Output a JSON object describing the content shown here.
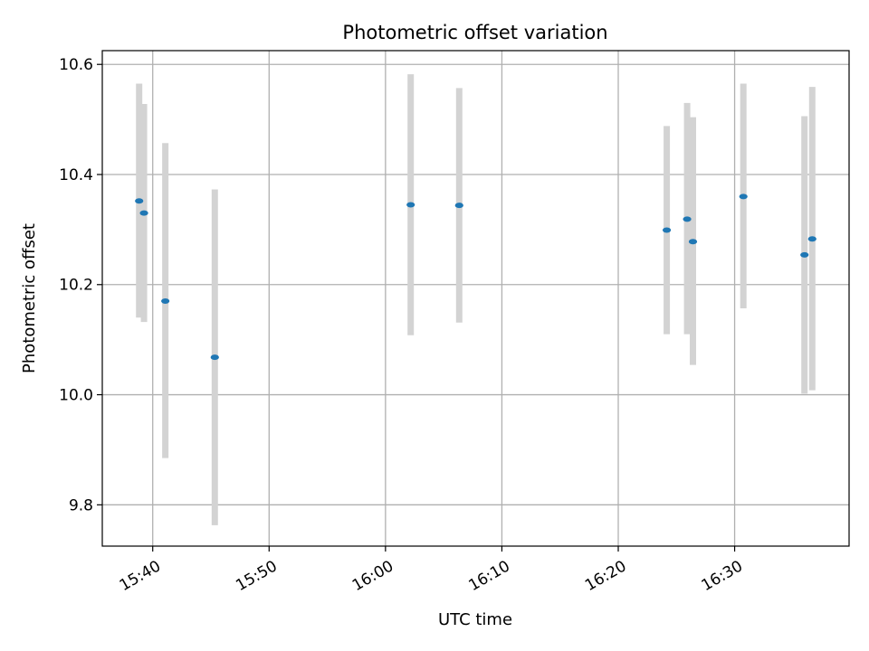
{
  "chart_data": {
    "type": "scatter",
    "title": "Photometric offset variation",
    "xlabel": "UTC time",
    "ylabel": "Photometric offset",
    "x_ticks": [
      "15:40",
      "15:50",
      "16:00",
      "16:10",
      "16:20",
      "16:30"
    ],
    "y_ticks": [
      "9.8",
      "10.0",
      "10.2",
      "10.4",
      "10.6"
    ],
    "xlim": [
      "15:35:40",
      "16:39:50"
    ],
    "ylim": [
      9.725,
      10.625
    ],
    "grid": true,
    "marker_color": "#1f77b4",
    "errorbar_color": "#d3d3d3",
    "series": [
      {
        "points": [
          {
            "x": "15:38:50",
            "y": 10.352,
            "y_low": 10.14,
            "y_high": 10.565
          },
          {
            "x": "15:39:15",
            "y": 10.33,
            "y_low": 10.132,
            "y_high": 10.528
          },
          {
            "x": "15:41:05",
            "y": 10.17,
            "y_low": 9.885,
            "y_high": 10.457
          },
          {
            "x": "15:45:20",
            "y": 10.068,
            "y_low": 9.763,
            "y_high": 10.373
          },
          {
            "x": "16:02:10",
            "y": 10.345,
            "y_low": 10.108,
            "y_high": 10.582
          },
          {
            "x": "16:06:20",
            "y": 10.344,
            "y_low": 10.131,
            "y_high": 10.557
          },
          {
            "x": "16:24:10",
            "y": 10.299,
            "y_low": 10.11,
            "y_high": 10.488
          },
          {
            "x": "16:25:55",
            "y": 10.319,
            "y_low": 10.11,
            "y_high": 10.53
          },
          {
            "x": "16:26:25",
            "y": 10.278,
            "y_low": 10.054,
            "y_high": 10.504
          },
          {
            "x": "16:30:45",
            "y": 10.36,
            "y_low": 10.157,
            "y_high": 10.565
          },
          {
            "x": "16:36:00",
            "y": 10.254,
            "y_low": 10.002,
            "y_high": 10.506
          },
          {
            "x": "16:36:40",
            "y": 10.283,
            "y_low": 10.008,
            "y_high": 10.559
          }
        ]
      }
    ]
  }
}
